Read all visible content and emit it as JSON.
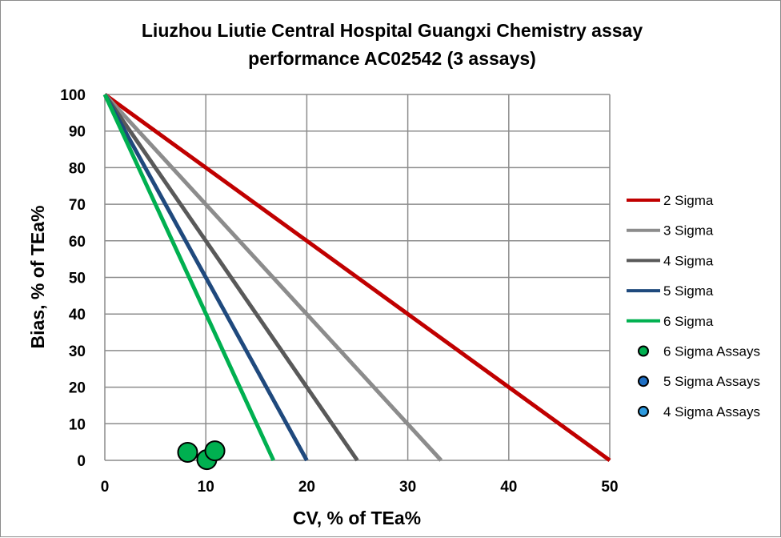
{
  "chart_data": {
    "type": "line",
    "title_lines": [
      "Liuzhou Liutie Central Hospital Guangxi Chemistry assay",
      "performance AC02542 (3 assays)"
    ],
    "xlabel": "CV, % of TEa%",
    "ylabel": "Bias, % of TEa%",
    "xlim": [
      0,
      50
    ],
    "ylim": [
      0,
      100
    ],
    "xticks": [
      0,
      10,
      20,
      30,
      40,
      50
    ],
    "yticks": [
      0,
      10,
      20,
      30,
      40,
      50,
      60,
      70,
      80,
      90,
      100
    ],
    "grid": true,
    "legend_position": "right",
    "series": [
      {
        "name": "2 Sigma",
        "kind": "line",
        "color": "#c00000",
        "x": [
          0,
          50
        ],
        "y": [
          100,
          0
        ]
      },
      {
        "name": "3 Sigma",
        "kind": "line",
        "color": "#8c8c8c",
        "x": [
          0,
          33.3
        ],
        "y": [
          100,
          0
        ]
      },
      {
        "name": "4 Sigma",
        "kind": "line",
        "color": "#595959",
        "x": [
          0,
          25
        ],
        "y": [
          100,
          0
        ]
      },
      {
        "name": "5 Sigma",
        "kind": "line",
        "color": "#1f497d",
        "x": [
          0,
          20
        ],
        "y": [
          100,
          0
        ]
      },
      {
        "name": "6 Sigma",
        "kind": "line",
        "color": "#00b050",
        "x": [
          0,
          16.7
        ],
        "y": [
          100,
          0
        ]
      },
      {
        "name": "6 Sigma Assays",
        "kind": "scatter",
        "color": "#00b050",
        "x": [
          8.2,
          10.1,
          10.9
        ],
        "y": [
          2.2,
          0.2,
          2.6
        ]
      },
      {
        "name": "5 Sigma Assays",
        "kind": "scatter",
        "color": "#1f6fc4",
        "x": [],
        "y": []
      },
      {
        "name": "4 Sigma Assays",
        "kind": "scatter",
        "color": "#2e9be0",
        "x": [],
        "y": []
      }
    ]
  }
}
